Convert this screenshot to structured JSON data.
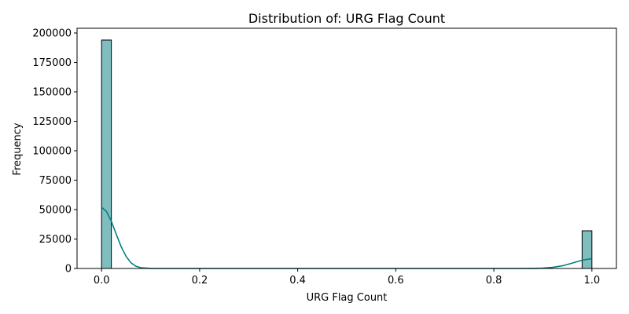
{
  "chart_data": {
    "type": "bar",
    "title": "Distribution of: URG Flag Count",
    "xlabel": "URG Flag Count",
    "ylabel": "Frequency",
    "xlim": [
      -0.05,
      1.05
    ],
    "ylim": [
      0,
      204000
    ],
    "bins": [
      {
        "x0": 0.0,
        "x1": 0.02,
        "value": 194000
      },
      {
        "x0": 0.98,
        "x1": 1.0,
        "value": 32000
      }
    ],
    "kde": {
      "x": [
        0.0,
        0.01,
        0.02,
        0.03,
        0.04,
        0.05,
        0.06,
        0.07,
        0.08,
        0.1,
        0.12,
        0.15,
        0.2,
        0.4,
        0.6,
        0.8,
        0.85,
        0.88,
        0.9,
        0.92,
        0.94,
        0.96,
        0.98,
        1.0
      ],
      "y": [
        52000,
        48500,
        40000,
        29000,
        18500,
        10200,
        4800,
        1900,
        650,
        60,
        0,
        0,
        0,
        0,
        0,
        0,
        0,
        60,
        250,
        900,
        2300,
        4600,
        7000,
        8400
      ]
    },
    "xticks": [
      "0.0",
      "0.2",
      "0.4",
      "0.6",
      "0.8",
      "1.0"
    ],
    "xtick_values": [
      0.0,
      0.2,
      0.4,
      0.6,
      0.8,
      1.0
    ],
    "yticks": [
      "0",
      "25000",
      "50000",
      "75000",
      "100000",
      "125000",
      "150000",
      "175000",
      "200000"
    ],
    "ytick_values": [
      0,
      25000,
      50000,
      75000,
      100000,
      125000,
      150000,
      175000,
      200000
    ],
    "bar_color": "#80bdbf",
    "bar_edge_color": "#000000",
    "kde_color": "#008080",
    "grid": false,
    "legend": "none"
  }
}
